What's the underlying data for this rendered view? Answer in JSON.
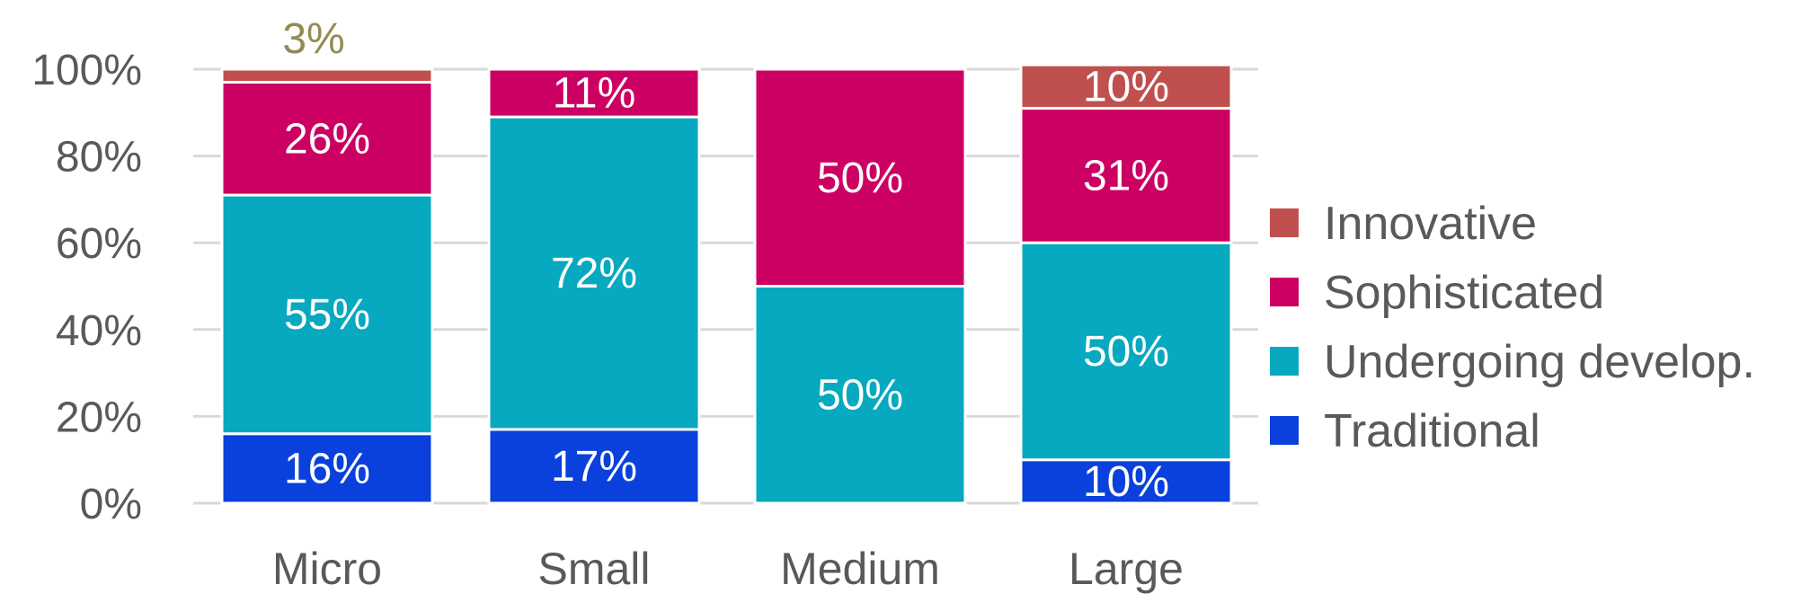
{
  "chart_data": {
    "type": "bar",
    "stacked": true,
    "percent": true,
    "categories": [
      "Micro",
      "Small",
      "Medium",
      "Large"
    ],
    "series": [
      {
        "name": "Traditional",
        "color": "#0a40dc",
        "values": [
          16,
          17,
          0,
          10
        ],
        "labels": [
          "16%",
          "17%",
          "",
          "10%"
        ]
      },
      {
        "name": "Undergoing develop.",
        "color": "#06a9bf",
        "values": [
          55,
          72,
          50,
          50
        ],
        "labels": [
          "55%",
          "72%",
          "50%",
          "50%"
        ]
      },
      {
        "name": "Sophisticated",
        "color": "#cc0062",
        "values": [
          26,
          11,
          50,
          31
        ],
        "labels": [
          "26%",
          "11%",
          "50%",
          "31%"
        ]
      },
      {
        "name": "Innovative",
        "color": "#c0504d",
        "values": [
          3,
          0,
          0,
          10
        ],
        "labels": [
          "3%",
          "",
          "",
          "10%"
        ]
      }
    ],
    "outside_label_color": "#948a54",
    "yticks": [
      "0%",
      "20%",
      "40%",
      "60%",
      "80%",
      "100%"
    ],
    "ylim": [
      0,
      100
    ],
    "grid": true,
    "legend_position": "right"
  }
}
